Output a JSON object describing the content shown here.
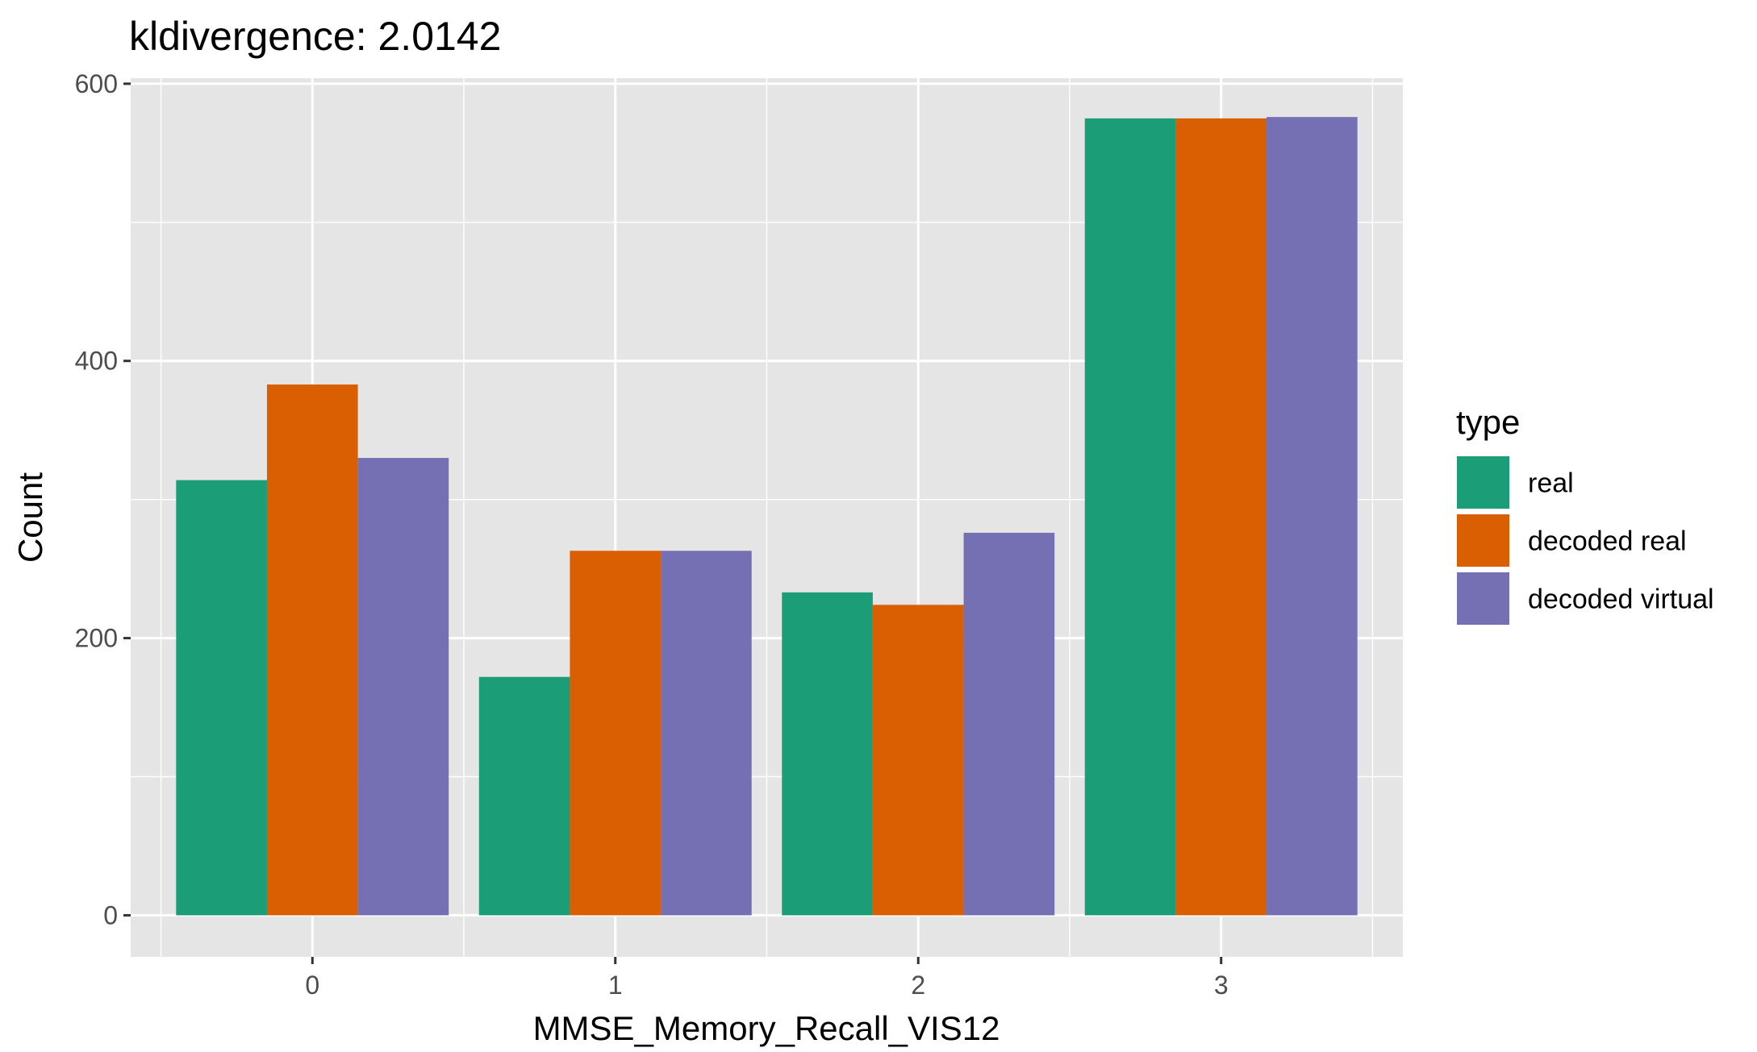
{
  "chart_data": {
    "type": "bar",
    "title": "kldivergence: 2.0142",
    "xlabel": "MMSE_Memory_Recall_VIS12",
    "ylabel": "Count",
    "categories": [
      "0",
      "1",
      "2",
      "3"
    ],
    "yticks": [
      "0",
      "200",
      "400",
      "600"
    ],
    "ylim": [
      -30,
      604
    ],
    "grid": true,
    "legend_title": "type",
    "legend_position": "right",
    "series": [
      {
        "name": "real",
        "color": "#1B9E77",
        "values": [
          314,
          172,
          233,
          575
        ]
      },
      {
        "name": "decoded real",
        "color": "#D95F02",
        "values": [
          383,
          263,
          224,
          575
        ]
      },
      {
        "name": "decoded virtual",
        "color": "#7570B3",
        "values": [
          330,
          263,
          276,
          576
        ]
      }
    ]
  }
}
